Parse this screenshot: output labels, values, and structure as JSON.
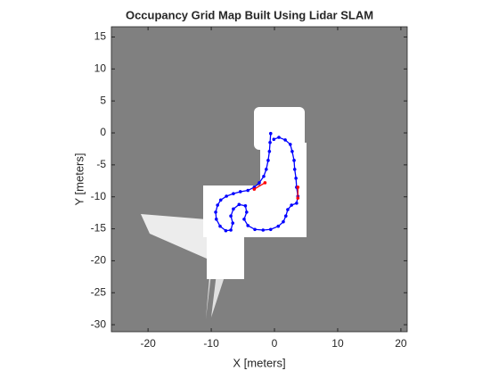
{
  "chart_data": {
    "type": "line",
    "title": "Occupancy Grid Map Built Using Lidar SLAM",
    "x_label": "X [meters]",
    "y_label": "Y [meters]",
    "xlim": [
      -25.8,
      21
    ],
    "ylim": [
      -31.1,
      16.6
    ],
    "xticks": [
      -20,
      -10,
      0,
      10,
      20
    ],
    "yticks": [
      15,
      10,
      5,
      0,
      -5,
      -10,
      -15,
      -20,
      -25,
      -30
    ],
    "series": [
      {
        "color": "#0000ff",
        "x": [
          -0.6,
          -0.7,
          -0.8,
          -1.0,
          -1.3,
          -1.7,
          -2.4,
          -3.2,
          -4.2,
          -5.4,
          -6.5,
          -7.6,
          -8.5,
          -9.0,
          -9.3,
          -9.2,
          -8.6,
          -7.7,
          -6.9,
          -6.6,
          -6.9,
          -6.5,
          -5.6,
          -4.6,
          -4.4,
          -4.8,
          -4.2,
          -3.1,
          -1.8,
          -0.6,
          0.6,
          1.4,
          1.8,
          2.1,
          2.7,
          3.5,
          3.7,
          3.5,
          3.4,
          3.2,
          3.1,
          2.8,
          2.5,
          1.7,
          0.7,
          -0.1
        ],
        "values": [
          -0.1,
          -1.5,
          -2.9,
          -4.3,
          -5.7,
          -6.8,
          -7.8,
          -8.5,
          -9.0,
          -9.2,
          -9.5,
          -9.9,
          -10.5,
          -11.3,
          -12.4,
          -13.5,
          -14.6,
          -15.3,
          -15.2,
          -14.1,
          -13.0,
          -11.9,
          -11.2,
          -11.4,
          -12.4,
          -13.5,
          -14.5,
          -15.1,
          -15.2,
          -15.1,
          -14.6,
          -13.9,
          -13.0,
          -12.0,
          -11.3,
          -11.0,
          -9.9,
          -8.5,
          -7.1,
          -5.7,
          -4.3,
          -2.9,
          -1.8,
          -1.1,
          -0.7,
          -1.0
        ]
      },
      {
        "color": "#ff0000",
        "x": [
          -3.2,
          -1.5,
          null,
          3.7,
          3.7
        ],
        "values": [
          -8.8,
          -7.8,
          null,
          -8.5,
          -10.2
        ]
      }
    ]
  }
}
